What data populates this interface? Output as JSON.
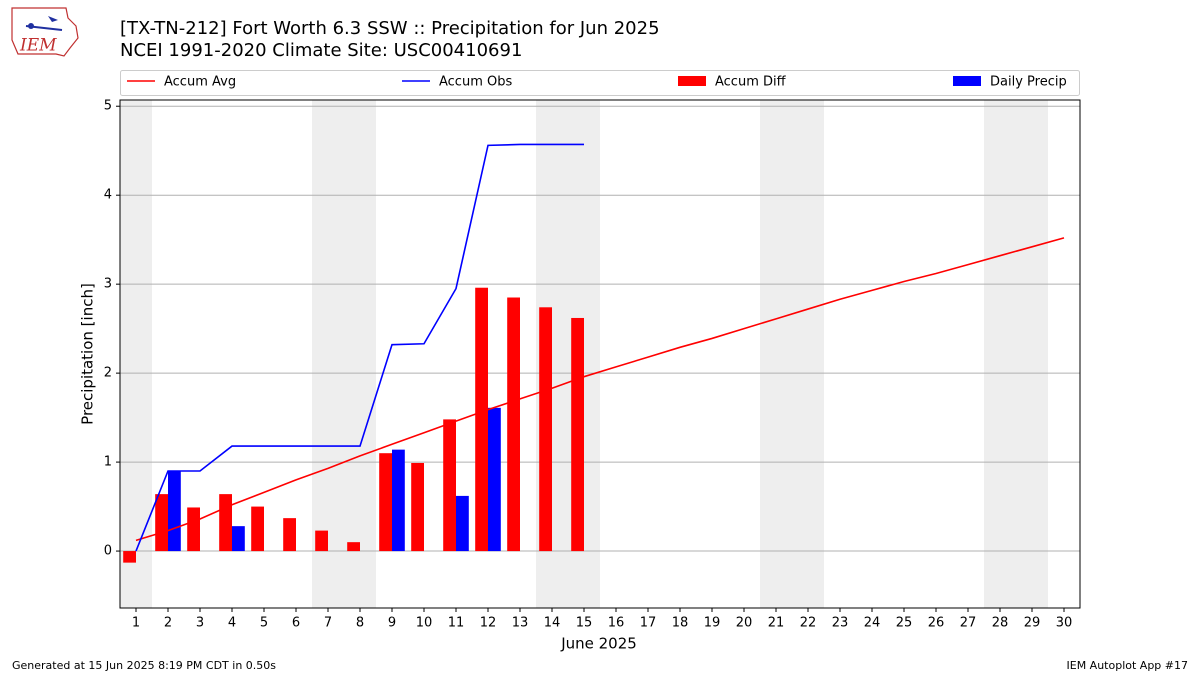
{
  "chart_data": {
    "type": "combo",
    "title": "[TX-TN-212] Fort Worth 6.3 SSW :: Precipitation for Jun 2025",
    "subtitle": "NCEI 1991-2020 Climate Site: USC00410691",
    "logo_text": "IEM",
    "x_label": "June 2025",
    "y_label": "Precipitation [inch]",
    "footer_left": "Generated at 15 Jun 2025 8:19 PM CDT in 0.50s",
    "footer_right": "IEM Autoplot App #17",
    "x": [
      1,
      2,
      3,
      4,
      5,
      6,
      7,
      8,
      9,
      10,
      11,
      12,
      13,
      14,
      15,
      16,
      17,
      18,
      19,
      20,
      21,
      22,
      23,
      24,
      25,
      26,
      27,
      28,
      29,
      30
    ],
    "xlim": [
      0.5,
      30.5
    ],
    "xticks": [
      1,
      2,
      3,
      4,
      5,
      6,
      7,
      8,
      9,
      10,
      11,
      12,
      13,
      14,
      15,
      16,
      17,
      18,
      19,
      20,
      21,
      22,
      23,
      24,
      25,
      26,
      27,
      28,
      29,
      30
    ],
    "ylim": [
      -0.64,
      5.07
    ],
    "yticks": [
      0,
      1,
      2,
      3,
      4,
      5
    ],
    "grid": true,
    "shade_spans": [
      [
        0.5,
        1.5
      ],
      [
        6.5,
        8.5
      ],
      [
        13.5,
        15.5
      ],
      [
        20.5,
        22.5
      ],
      [
        27.5,
        29.5
      ]
    ],
    "shade_color": "#eeeeee",
    "series": [
      {
        "name": "Accum Avg",
        "kind": "line",
        "color": "#ff0000",
        "values": [
          0.12,
          0.23,
          0.36,
          0.52,
          0.66,
          0.8,
          0.93,
          1.07,
          1.2,
          1.33,
          1.46,
          1.59,
          1.71,
          1.83,
          1.96,
          2.07,
          2.18,
          2.29,
          2.39,
          2.5,
          2.61,
          2.72,
          2.83,
          2.93,
          3.03,
          3.12,
          3.22,
          3.32,
          3.42,
          3.52
        ]
      },
      {
        "name": "Accum Obs",
        "kind": "line",
        "color": "#0000ff",
        "values": [
          0,
          0.9,
          0.9,
          1.18,
          1.18,
          1.18,
          1.18,
          1.18,
          2.32,
          2.33,
          2.95,
          4.56,
          4.57,
          4.57,
          4.57,
          null,
          null,
          null,
          null,
          null,
          null,
          null,
          null,
          null,
          null,
          null,
          null,
          null,
          null,
          null
        ]
      },
      {
        "name": "Accum Diff",
        "kind": "bar",
        "color": "#ff0000",
        "values": [
          -0.13,
          0.64,
          0.49,
          0.64,
          0.5,
          0.37,
          0.23,
          0.1,
          1.1,
          0.99,
          1.48,
          2.96,
          2.85,
          2.74,
          2.62,
          null,
          null,
          null,
          null,
          null,
          null,
          null,
          null,
          null,
          null,
          null,
          null,
          null,
          null,
          null
        ]
      },
      {
        "name": "Daily Precip",
        "kind": "bar",
        "color": "#0000ff",
        "values": [
          0,
          0.9,
          0,
          0.28,
          0,
          0,
          0,
          0,
          1.14,
          0,
          0.62,
          1.61,
          0,
          0,
          0,
          null,
          null,
          null,
          null,
          null,
          null,
          null,
          null,
          null,
          null,
          null,
          null,
          null,
          null,
          null
        ]
      }
    ]
  }
}
